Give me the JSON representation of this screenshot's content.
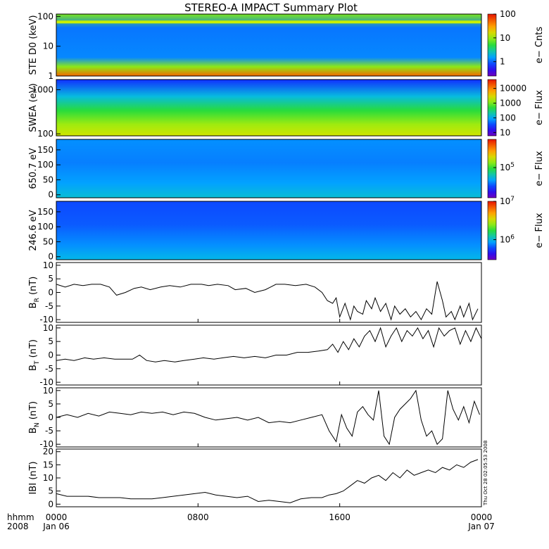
{
  "chart_data": {
    "title": "STEREO-A IMPACT Summary Plot",
    "type": "multi-panel",
    "x_axis": {
      "label_top": "hhmm",
      "label_bottom": "2008",
      "ticks": [
        {
          "value": 0,
          "time": "0000",
          "date": "Jan 06"
        },
        {
          "value": 8,
          "time": "0800",
          "date": ""
        },
        {
          "value": 16,
          "time": "1600",
          "date": ""
        },
        {
          "value": 24,
          "time": "0000",
          "date": "Jan 07"
        }
      ]
    },
    "timestamp": "Thu Oct 28 02:05:53 2008",
    "spectrograms": [
      {
        "ylabel": "STE D0 (keV)",
        "yscale": "log",
        "ylim": [
          1,
          120
        ],
        "yticks": [
          {
            "value": 1,
            "label": "1"
          },
          {
            "value": 10,
            "label": "10"
          },
          {
            "value": 100,
            "label": "100"
          }
        ],
        "colorbar": {
          "label": "e− Cnts",
          "scale": "log",
          "range": [
            0.25,
            100
          ],
          "ticks": [
            {
              "value": 1,
              "label": "1"
            },
            {
              "value": 10,
              "label": "10"
            },
            {
              "value": 100,
              "label": "100"
            }
          ]
        }
      },
      {
        "ylabel": "SWEA (eV)",
        "yscale": "log",
        "ylim": [
          90,
          1700
        ],
        "yticks": [
          {
            "value": 100,
            "label": "100"
          },
          {
            "value": 1000,
            "label": "1000"
          }
        ],
        "colorbar": {
          "label": "e− Flux",
          "scale": "log",
          "range": [
            6,
            40000
          ],
          "ticks": [
            {
              "value": 10,
              "label": "10"
            },
            {
              "value": 100,
              "label": "100"
            },
            {
              "value": 1000,
              "label": "1000"
            },
            {
              "value": 10000,
              "label": "10000"
            }
          ]
        }
      },
      {
        "ylabel": "650.7 eV",
        "yscale": "linear",
        "ylim": [
          -10,
          185
        ],
        "yticks": [
          {
            "value": 0,
            "label": "0"
          },
          {
            "value": 50,
            "label": "50"
          },
          {
            "value": 100,
            "label": "100"
          },
          {
            "value": 150,
            "label": "150"
          }
        ],
        "colorbar": {
          "label": "e− Flux",
          "scale": "log",
          "range": [
            20000,
            450000
          ],
          "ticks": [
            {
              "value": 100000,
              "label": "10",
              "exp": "5"
            }
          ]
        }
      },
      {
        "ylabel": "246.6 eV",
        "yscale": "linear",
        "ylim": [
          -10,
          185
        ],
        "yticks": [
          {
            "value": 0,
            "label": "0"
          },
          {
            "value": 50,
            "label": "50"
          },
          {
            "value": 100,
            "label": "100"
          },
          {
            "value": 150,
            "label": "150"
          }
        ],
        "colorbar": {
          "label": "e− Flux",
          "scale": "log",
          "range": [
            300000,
            10000000
          ],
          "ticks": [
            {
              "value": 1000000,
              "label": "10",
              "exp": "6"
            },
            {
              "value": 10000000,
              "label": "10",
              "exp": "7"
            }
          ]
        }
      }
    ],
    "line_panels": [
      {
        "ylabel": "B",
        "ylabel_sub": "R",
        "ylabel_unit": "(nT)",
        "ylim": [
          -11,
          11
        ],
        "yticks": [
          -10,
          -5,
          0,
          5,
          10
        ],
        "x": [
          0,
          0.5,
          1.0,
          1.5,
          2.0,
          2.5,
          3.0,
          3.4,
          3.9,
          4.4,
          4.8,
          5.3,
          5.9,
          6.4,
          7.0,
          7.6,
          8.2,
          8.6,
          9.1,
          9.7,
          10.1,
          10.7,
          11.2,
          11.8,
          12.1,
          12.4,
          12.9,
          13.5,
          14.1,
          14.6,
          15.0,
          15.3,
          15.6,
          15.8,
          16.0,
          16.3,
          16.6,
          16.8,
          17.0,
          17.3,
          17.5,
          17.8,
          18.0,
          18.3,
          18.6,
          18.9,
          19.1,
          19.4,
          19.7,
          20.0,
          20.3,
          20.6,
          20.9,
          21.2,
          21.5,
          21.8,
          22.0,
          22.3,
          22.5,
          22.8,
          23.0,
          23.3,
          23.5,
          23.8
        ],
        "y": [
          3,
          2,
          3,
          2.5,
          3,
          3,
          2,
          -1,
          0,
          1.5,
          2,
          1,
          2,
          2.5,
          2,
          3,
          3,
          2.5,
          3,
          2.5,
          1,
          1.5,
          0,
          1,
          2,
          3,
          3,
          2.5,
          3,
          2,
          0,
          -3,
          -4,
          -2,
          -9,
          -4,
          -10,
          -5,
          -7,
          -8,
          -3,
          -6,
          -2,
          -7,
          -4,
          -10,
          -5,
          -8,
          -6,
          -9,
          -7,
          -10,
          -6,
          -8,
          4,
          -3,
          -9,
          -7,
          -10,
          -5,
          -9,
          -4,
          -10,
          -6
        ]
      },
      {
        "ylabel": "B",
        "ylabel_sub": "T",
        "ylabel_unit": "(nT)",
        "ylim": [
          -11,
          11
        ],
        "yticks": [
          -10,
          -5,
          0,
          5,
          10
        ],
        "x": [
          0,
          0.5,
          1.0,
          1.6,
          2.1,
          2.7,
          3.3,
          3.8,
          4.3,
          4.7,
          5.1,
          5.6,
          6.1,
          6.7,
          7.2,
          7.8,
          8.3,
          8.9,
          9.4,
          10.0,
          10.6,
          11.2,
          11.8,
          12.4,
          13.0,
          13.6,
          14.2,
          14.8,
          15.3,
          15.6,
          15.9,
          16.2,
          16.5,
          16.8,
          17.1,
          17.4,
          17.7,
          18.0,
          18.3,
          18.6,
          18.9,
          19.2,
          19.5,
          19.8,
          20.1,
          20.4,
          20.7,
          21.0,
          21.3,
          21.6,
          21.9,
          22.2,
          22.5,
          22.8,
          23.1,
          23.4,
          23.7,
          24.0
        ],
        "y": [
          -2,
          -1.5,
          -2,
          -1,
          -1.5,
          -1,
          -1.5,
          -1.5,
          -1.5,
          0,
          -2,
          -2.5,
          -2,
          -2.5,
          -2,
          -1.5,
          -1,
          -1.5,
          -1,
          -0.5,
          -1,
          -0.5,
          -1,
          0,
          0,
          1,
          1,
          1.5,
          2,
          4,
          1,
          5,
          2,
          6,
          3,
          7,
          9,
          5,
          10,
          3,
          7,
          10,
          5,
          9,
          7,
          10,
          6,
          9,
          3,
          10,
          7,
          9,
          10,
          4,
          9,
          5,
          10,
          6
        ]
      },
      {
        "ylabel": "B",
        "ylabel_sub": "N",
        "ylabel_unit": "(nT)",
        "ylim": [
          -11,
          11
        ],
        "yticks": [
          -10,
          -5,
          0,
          5,
          10
        ],
        "x": [
          0,
          0.6,
          1.2,
          1.8,
          2.4,
          3.0,
          3.6,
          4.2,
          4.8,
          5.4,
          6.0,
          6.6,
          7.2,
          7.8,
          8.4,
          9.0,
          9.6,
          10.2,
          10.8,
          11.4,
          12.0,
          12.6,
          13.2,
          13.8,
          14.4,
          15.0,
          15.4,
          15.8,
          16.1,
          16.4,
          16.7,
          17.0,
          17.3,
          17.6,
          17.9,
          18.2,
          18.5,
          18.8,
          19.1,
          19.4,
          19.7,
          20.0,
          20.3,
          20.6,
          20.9,
          21.2,
          21.5,
          21.8,
          22.1,
          22.4,
          22.7,
          23.0,
          23.3,
          23.6,
          23.9
        ],
        "y": [
          0,
          1,
          0,
          1.5,
          0.5,
          2,
          1.5,
          1,
          2,
          1.5,
          2,
          1,
          2,
          1.5,
          0,
          -1,
          -0.5,
          0,
          -1,
          0,
          -2,
          -1.5,
          -2,
          -1,
          0,
          1,
          -5,
          -9,
          1,
          -4,
          -7,
          2,
          4,
          1,
          -1,
          10,
          -7,
          -10,
          0,
          3,
          5,
          7,
          10,
          -1,
          -7,
          -5,
          -10,
          -8,
          10,
          3,
          -1,
          4,
          -2,
          6,
          1
        ]
      },
      {
        "ylabel": "IBI",
        "ylabel_sub": "",
        "ylabel_unit": "(nT)",
        "ylim": [
          -1,
          21
        ],
        "yticks": [
          0,
          5,
          10,
          15,
          20
        ],
        "x": [
          0,
          0.6,
          1.2,
          1.8,
          2.4,
          3.0,
          3.6,
          4.2,
          4.8,
          5.4,
          6.0,
          6.6,
          7.2,
          7.8,
          8.4,
          9.0,
          9.6,
          10.2,
          10.8,
          11.4,
          12.0,
          12.6,
          13.2,
          13.8,
          14.4,
          15.0,
          15.4,
          15.8,
          16.2,
          16.6,
          17.0,
          17.4,
          17.8,
          18.2,
          18.6,
          19.0,
          19.4,
          19.8,
          20.2,
          20.6,
          21.0,
          21.4,
          21.8,
          22.2,
          22.6,
          23.0,
          23.4,
          23.8
        ],
        "y": [
          4,
          3,
          3,
          3,
          2.5,
          2.5,
          2.5,
          2,
          2,
          2,
          2.5,
          3,
          3.5,
          4,
          4.5,
          3.5,
          3,
          2.5,
          3,
          1,
          1.5,
          1,
          0.5,
          2,
          2.5,
          2.5,
          3.5,
          4,
          5,
          7,
          9,
          8,
          10,
          11,
          9,
          12,
          10,
          13,
          11,
          12,
          13,
          12,
          14,
          13,
          15,
          14,
          16,
          17
        ]
      }
    ]
  }
}
